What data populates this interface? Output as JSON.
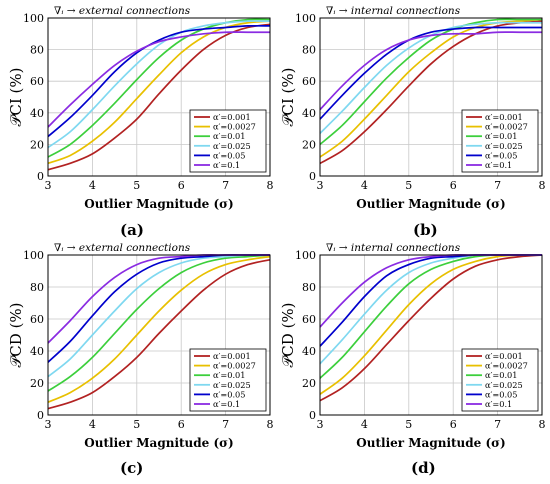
{
  "legend_labels": [
    "α′=0.001",
    "α′=0.0027",
    "α′=0.01",
    "α′=0.025",
    "α′=0.05",
    "α′=0.1"
  ],
  "series_colors": [
    "#b22222",
    "#e8c000",
    "#3ccf3c",
    "#7fd8f0",
    "#0000cc",
    "#8a2be2"
  ],
  "chart_data": [
    {
      "type": "line",
      "caption": "(a)",
      "title": "∇ᵢ → external connections",
      "xlabel": "Outlier Magnitude (σ)",
      "ylabel": "𝒫CI (%)",
      "xlim": [
        3,
        8
      ],
      "ylim": [
        0,
        100
      ],
      "xticks": [
        3,
        4,
        5,
        6,
        7,
        8
      ],
      "yticks": [
        0,
        20,
        40,
        60,
        80,
        100
      ],
      "grid": true,
      "legend_position": "bottom-right",
      "x": [
        3,
        3.5,
        4,
        4.5,
        5,
        5.5,
        6,
        6.5,
        7,
        7.5,
        8
      ],
      "series": [
        {
          "name": "α′=0.001",
          "values": [
            4,
            8,
            14,
            24,
            36,
            52,
            67,
            80,
            89,
            94,
            96
          ]
        },
        {
          "name": "α′=0.0027",
          "values": [
            8,
            13,
            22,
            34,
            49,
            64,
            78,
            88,
            94,
            97,
            98
          ]
        },
        {
          "name": "α′=0.01",
          "values": [
            12,
            20,
            32,
            46,
            61,
            75,
            86,
            93,
            97,
            99,
            99
          ]
        },
        {
          "name": "α′=0.025",
          "values": [
            18,
            28,
            42,
            57,
            71,
            83,
            91,
            95,
            97,
            98,
            98
          ]
        },
        {
          "name": "α′=0.05",
          "values": [
            25,
            37,
            51,
            66,
            78,
            86,
            91,
            93,
            94,
            95,
            95
          ]
        },
        {
          "name": "α′=0.1",
          "values": [
            31,
            45,
            58,
            70,
            79,
            85,
            88,
            90,
            91,
            91,
            91
          ]
        }
      ]
    },
    {
      "type": "line",
      "caption": "(b)",
      "title": "∇ᵢ → internal connections",
      "xlabel": "Outlier Magnitude (σ)",
      "ylabel": "𝒫CI (%)",
      "xlim": [
        3,
        8
      ],
      "ylim": [
        0,
        100
      ],
      "xticks": [
        3,
        4,
        5,
        6,
        7,
        8
      ],
      "yticks": [
        0,
        20,
        40,
        60,
        80,
        100
      ],
      "grid": true,
      "legend_position": "bottom-right",
      "x": [
        3,
        3.5,
        4,
        4.5,
        5,
        5.5,
        6,
        6.5,
        7,
        7.5,
        8
      ],
      "series": [
        {
          "name": "α′=0.001",
          "values": [
            8,
            16,
            28,
            42,
            57,
            71,
            82,
            90,
            95,
            97,
            98
          ]
        },
        {
          "name": "α′=0.0027",
          "values": [
            12,
            22,
            36,
            51,
            66,
            78,
            88,
            94,
            97,
            98,
            99
          ]
        },
        {
          "name": "α′=0.01",
          "values": [
            20,
            32,
            47,
            62,
            75,
            86,
            93,
            97,
            99,
            99,
            99
          ]
        },
        {
          "name": "α′=0.025",
          "values": [
            27,
            41,
            56,
            70,
            81,
            89,
            94,
            96,
            97,
            97,
            97
          ]
        },
        {
          "name": "α′=0.05",
          "values": [
            36,
            51,
            65,
            77,
            86,
            91,
            93,
            94,
            94,
            94,
            94
          ]
        },
        {
          "name": "α′=0.1",
          "values": [
            42,
            57,
            70,
            80,
            86,
            89,
            90,
            90,
            91,
            91,
            91
          ]
        }
      ]
    },
    {
      "type": "line",
      "caption": "(c)",
      "title": "∇ᵢ → external connections",
      "xlabel": "Outlier Magnitude (σ)",
      "ylabel": "𝒫CD (%)",
      "xlim": [
        3,
        8
      ],
      "ylim": [
        0,
        100
      ],
      "xticks": [
        3,
        4,
        5,
        6,
        7,
        8
      ],
      "yticks": [
        0,
        20,
        40,
        60,
        80,
        100
      ],
      "grid": true,
      "legend_position": "bottom-right",
      "x": [
        3,
        3.5,
        4,
        4.5,
        5,
        5.5,
        6,
        6.5,
        7,
        7.5,
        8
      ],
      "series": [
        {
          "name": "α′=0.001",
          "values": [
            4,
            8,
            14,
            24,
            36,
            51,
            65,
            78,
            88,
            94,
            97
          ]
        },
        {
          "name": "α′=0.0027",
          "values": [
            8,
            14,
            23,
            35,
            50,
            65,
            78,
            88,
            94,
            97,
            99
          ]
        },
        {
          "name": "α′=0.01",
          "values": [
            15,
            24,
            36,
            51,
            66,
            79,
            89,
            95,
            98,
            99,
            100
          ]
        },
        {
          "name": "α′=0.025",
          "values": [
            24,
            35,
            50,
            65,
            79,
            89,
            95,
            98,
            99,
            100,
            100
          ]
        },
        {
          "name": "α′=0.05",
          "values": [
            33,
            46,
            62,
            77,
            88,
            95,
            98,
            99,
            100,
            100,
            100
          ]
        },
        {
          "name": "α′=0.1",
          "values": [
            45,
            59,
            74,
            86,
            94,
            98,
            99,
            100,
            100,
            100,
            100
          ]
        }
      ]
    },
    {
      "type": "line",
      "caption": "(d)",
      "title": "∇ᵢ → internal connections",
      "xlabel": "Outlier Magnitude (σ)",
      "ylabel": "𝒫CD (%)",
      "xlim": [
        3,
        8
      ],
      "ylim": [
        0,
        100
      ],
      "xticks": [
        3,
        4,
        5,
        6,
        7,
        8
      ],
      "yticks": [
        0,
        20,
        40,
        60,
        80,
        100
      ],
      "grid": true,
      "legend_position": "bottom-right",
      "x": [
        3,
        3.5,
        4,
        4.5,
        5,
        5.5,
        6,
        6.5,
        7,
        7.5,
        8
      ],
      "series": [
        {
          "name": "α′=0.001",
          "values": [
            9,
            17,
            29,
            44,
            59,
            73,
            85,
            93,
            97,
            99,
            100
          ]
        },
        {
          "name": "α′=0.0027",
          "values": [
            13,
            23,
            37,
            53,
            69,
            82,
            91,
            96,
            99,
            100,
            100
          ]
        },
        {
          "name": "α′=0.01",
          "values": [
            23,
            36,
            52,
            68,
            82,
            91,
            96,
            99,
            100,
            100,
            100
          ]
        },
        {
          "name": "α′=0.025",
          "values": [
            32,
            47,
            63,
            78,
            89,
            95,
            98,
            100,
            100,
            100,
            100
          ]
        },
        {
          "name": "α′=0.05",
          "values": [
            43,
            58,
            74,
            87,
            94,
            98,
            99,
            100,
            100,
            100,
            100
          ]
        },
        {
          "name": "α′=0.1",
          "values": [
            55,
            70,
            83,
            92,
            97,
            99,
            100,
            100,
            100,
            100,
            100
          ]
        }
      ]
    }
  ]
}
